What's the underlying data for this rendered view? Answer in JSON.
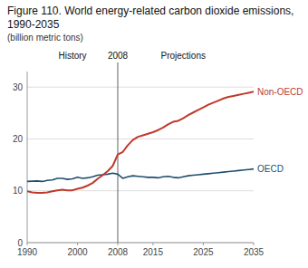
{
  "chart_data": {
    "type": "line",
    "title": "Figure 110. World energy-related carbon dioxide emissions, 1990-2035",
    "subtitle": "(billion metric tons)",
    "x": [
      1990,
      1991,
      1992,
      1993,
      1994,
      1995,
      1996,
      1997,
      1998,
      1999,
      2000,
      2001,
      2002,
      2003,
      2004,
      2005,
      2006,
      2007,
      2008,
      2009,
      2010,
      2011,
      2012,
      2013,
      2014,
      2015,
      2016,
      2017,
      2018,
      2019,
      2020,
      2021,
      2022,
      2023,
      2024,
      2025,
      2026,
      2027,
      2028,
      2029,
      2030,
      2031,
      2032,
      2033,
      2034,
      2035
    ],
    "series": [
      {
        "name": "OECD",
        "color": "#1f4e6e",
        "values": [
          11.8,
          11.85,
          11.9,
          11.8,
          12.0,
          12.1,
          12.4,
          12.4,
          12.2,
          12.3,
          12.6,
          12.4,
          12.5,
          12.7,
          13.0,
          13.1,
          13.2,
          13.4,
          13.2,
          12.4,
          12.7,
          12.9,
          12.8,
          12.7,
          12.6,
          12.6,
          12.5,
          12.7,
          12.8,
          12.6,
          12.5,
          12.7,
          12.9,
          13.0,
          13.1,
          13.2,
          13.3,
          13.4,
          13.5,
          13.6,
          13.7,
          13.8,
          13.9,
          14.0,
          14.1,
          14.2
        ]
      },
      {
        "name": "Non-OECD",
        "color": "#c0392b",
        "values": [
          9.9,
          9.7,
          9.6,
          9.6,
          9.7,
          9.9,
          10.1,
          10.2,
          10.1,
          10.1,
          10.4,
          10.6,
          11.0,
          11.5,
          12.3,
          13.0,
          13.8,
          14.8,
          17.0,
          17.5,
          18.8,
          19.8,
          20.4,
          20.7,
          21.0,
          21.3,
          21.7,
          22.2,
          22.8,
          23.3,
          23.5,
          24.0,
          24.6,
          25.1,
          25.6,
          26.1,
          26.6,
          27.0,
          27.4,
          27.8,
          28.1,
          28.3,
          28.5,
          28.7,
          28.9,
          29.1
        ]
      }
    ],
    "xlim": [
      1990,
      2035
    ],
    "ylim": [
      0,
      33
    ],
    "xticks": [
      1990,
      2000,
      2008,
      2015,
      2025,
      2035
    ],
    "yticks": [
      0,
      10,
      20,
      30
    ],
    "grid": true,
    "annotations": [
      {
        "text": "History",
        "x": 1999
      },
      {
        "text": "Projections",
        "x": 2021
      },
      {
        "type": "vline",
        "x": 2008,
        "text": "2008",
        "color": "#606060"
      }
    ]
  }
}
